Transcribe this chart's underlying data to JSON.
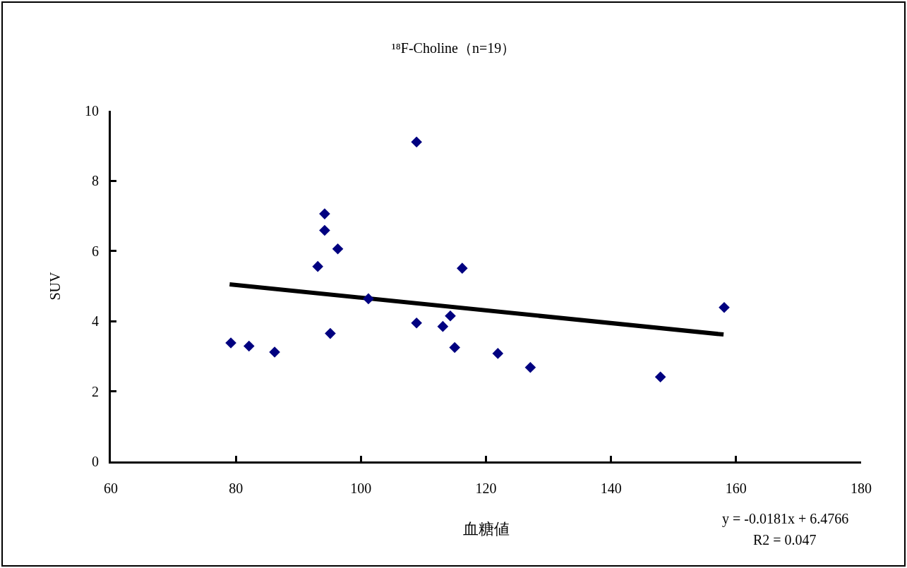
{
  "chart_data": {
    "type": "scatter",
    "title": "¹⁸F-Choline（n=19）",
    "xlabel": "血糖値",
    "ylabel": "SUV",
    "annotations": [
      "y = -0.0181x + 6.4766",
      "R2 = 0.047"
    ],
    "series": [
      {
        "color": "#000080",
        "marker": "diamond",
        "x": [
          79.2,
          82.1,
          86.2,
          93.1,
          94.2,
          94.2,
          96.3,
          95.1,
          101.2,
          108.9,
          108.9,
          113.1,
          114.3,
          115.0,
          116.2,
          121.9,
          127.1,
          147.9,
          158.1
        ],
        "values": [
          3.38,
          3.29,
          3.12,
          5.56,
          7.06,
          6.59,
          6.06,
          3.65,
          4.64,
          9.11,
          3.95,
          3.85,
          4.15,
          3.25,
          5.51,
          3.08,
          2.68,
          2.41,
          4.39
        ]
      },
      {
        "type": "line",
        "color": "#000000",
        "line_style": "solid",
        "x": [
          79,
          158
        ],
        "values": [
          5.05,
          3.62
        ]
      }
    ],
    "xlim": [
      60,
      180
    ],
    "xticks": [
      60,
      80,
      100,
      120,
      140,
      160,
      180
    ],
    "ylim": [
      0,
      10
    ],
    "yticks": [
      0,
      2,
      4,
      6,
      8,
      10
    ],
    "grid": false
  }
}
